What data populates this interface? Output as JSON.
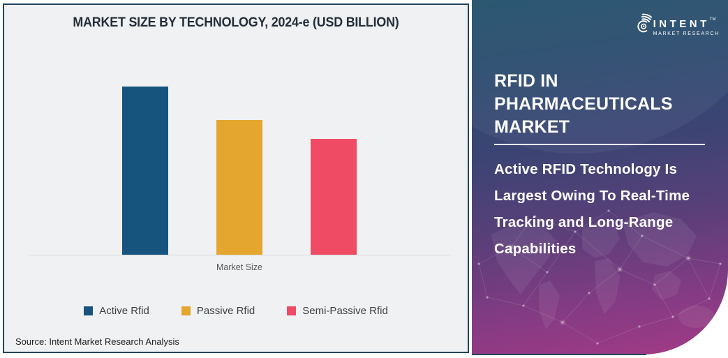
{
  "chart": {
    "title": "MARKET SIZE BY TECHNOLOGY, 2024-e (USD BILLION)",
    "xlabel": "Market Size",
    "source": "Source: Intent Market Research Analysis"
  },
  "chart_data": {
    "type": "bar",
    "title": "MARKET SIZE BY TECHNOLOGY, 2024-e (USD BILLION)",
    "categories": [
      "Market Size"
    ],
    "series": [
      {
        "name": "Active Rfid",
        "color": "#17547D",
        "values": [
          100
        ]
      },
      {
        "name": "Passive Rfid",
        "color": "#E5A62F",
        "values": [
          80
        ]
      },
      {
        "name": "Semi-Passive Rfid",
        "color": "#EF4B64",
        "values": [
          69
        ]
      }
    ],
    "value_note": "No numeric axis or data labels are shown in the figure; values are relative bar heights as % of the tallest bar (Active Rfid = 100).",
    "xlabel": "Market Size",
    "ylabel": "USD Billion",
    "ylim": null,
    "grid": false,
    "legend_position": "bottom"
  },
  "panel": {
    "title": "RFID IN PHARMACEUTICALS MARKET",
    "subtitle": "Active RFID Technology Is Largest Owing To Real-Time Tracking and Long-Range Capabilities",
    "gradient_stops": [
      "#20506B",
      "#2B4A6E",
      "#3D4474",
      "#5A3F79",
      "#823B83",
      "#A33A86"
    ],
    "border_color": "#204560",
    "background_color": "#EFF1F2"
  },
  "logo": {
    "name": "INTENT",
    "tagline": "MARKET RESEARCH",
    "tm": "TM"
  }
}
